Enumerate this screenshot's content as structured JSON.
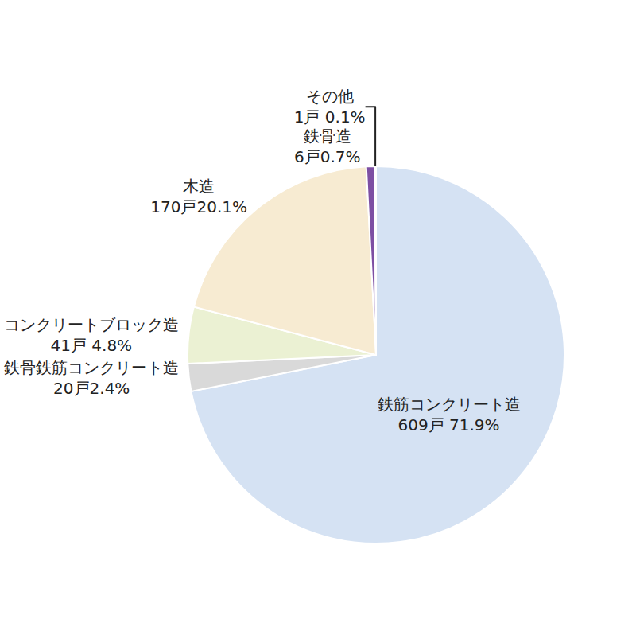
{
  "chart_data": {
    "type": "pie",
    "categories": [
      "鉄筋コンクリート造",
      "鉄骨鉄筋コンクリート造",
      "コンクリートブロック造",
      "木造",
      "鉄骨造",
      "その他"
    ],
    "values": [
      609,
      20,
      41,
      170,
      6,
      1
    ],
    "value_labels": [
      "609戸 71.9%",
      "20戸2.4%",
      "41戸 4.8%",
      "170戸20.1%",
      "6戸0.7%",
      "1戸 0.1%"
    ],
    "colors": [
      "#d5e2f3",
      "#d9d9d9",
      "#ebf1d3",
      "#f7ebd2",
      "#7d4fa3",
      "#c4d2e8"
    ],
    "data_labels": true
  }
}
